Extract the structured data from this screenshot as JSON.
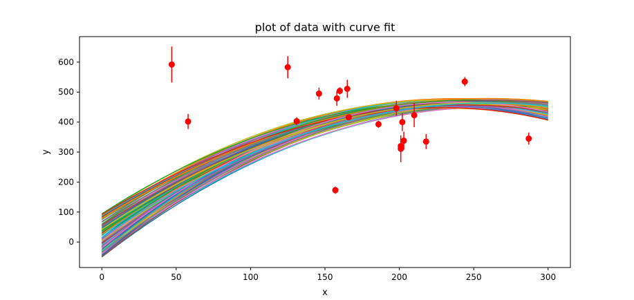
{
  "chart_data": {
    "type": "scatter",
    "title": "plot of data with curve fit",
    "xlabel": "x",
    "ylabel": "y",
    "xlim": [
      -15,
      315
    ],
    "ylim": [
      -85,
      685
    ],
    "xticks": [
      0,
      50,
      100,
      150,
      200,
      250,
      300
    ],
    "yticks": [
      0,
      100,
      200,
      300,
      400,
      500,
      600
    ],
    "grid": false,
    "legend": "none",
    "marker_color": "#ff0000",
    "points": [
      {
        "x": 47,
        "y": 592,
        "err": 60
      },
      {
        "x": 58,
        "y": 402,
        "err": 25
      },
      {
        "x": 125,
        "y": 583,
        "err": 37
      },
      {
        "x": 131,
        "y": 403,
        "err": 13
      },
      {
        "x": 146,
        "y": 495,
        "err": 20
      },
      {
        "x": 157,
        "y": 173,
        "err": 12
      },
      {
        "x": 158,
        "y": 479,
        "err": 25
      },
      {
        "x": 160,
        "y": 504,
        "err": 12
      },
      {
        "x": 165,
        "y": 511,
        "err": 30
      },
      {
        "x": 166,
        "y": 416,
        "err": 10
      },
      {
        "x": 186,
        "y": 393,
        "err": 12
      },
      {
        "x": 198,
        "y": 446,
        "err": 25
      },
      {
        "x": 201,
        "y": 311,
        "err": 45
      },
      {
        "x": 201,
        "y": 320,
        "err": 8
      },
      {
        "x": 202,
        "y": 400,
        "err": 30
      },
      {
        "x": 203,
        "y": 338,
        "err": 30
      },
      {
        "x": 210,
        "y": 423,
        "err": 40
      },
      {
        "x": 218,
        "y": 335,
        "err": 25
      },
      {
        "x": 244,
        "y": 535,
        "err": 15
      },
      {
        "x": 287,
        "y": 345,
        "err": 20
      }
    ],
    "curve_fits": {
      "count": 100,
      "form": "quadratic",
      "x_range": [
        0,
        300
      ],
      "value_at_0": [
        -50,
        95
      ],
      "peak_x": [
        230,
        265
      ],
      "peak_y": [
        445,
        480
      ],
      "colors": [
        "#1f77b4",
        "#ff7f0e",
        "#2ca02c",
        "#d62728",
        "#9467bd",
        "#8c564b",
        "#e377c2",
        "#7f7f7f",
        "#bcbd22",
        "#17becf"
      ]
    }
  }
}
